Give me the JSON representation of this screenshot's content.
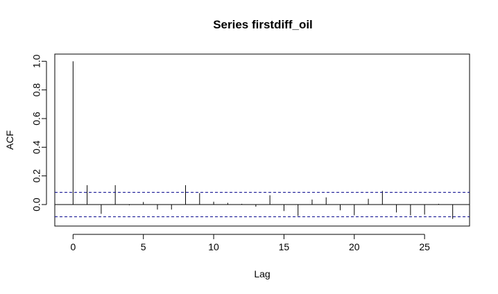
{
  "chart_data": {
    "type": "bar",
    "title": "Series  firstdiff_oil",
    "xlabel": "Lag",
    "ylabel": "ACF",
    "xlim": [
      -1.3,
      28.2
    ],
    "ylim": [
      -0.15,
      1.05
    ],
    "x_ticks": [
      0,
      5,
      10,
      15,
      20,
      25
    ],
    "y_ticks": [
      0.0,
      0.2,
      0.4,
      0.6,
      0.8,
      1.0
    ],
    "y_tick_labels": [
      "0.0",
      "0.2",
      "0.4",
      "0.6",
      "0.8",
      "1.0"
    ],
    "lags": [
      0,
      1,
      2,
      3,
      4,
      5,
      6,
      7,
      8,
      9,
      10,
      11,
      12,
      13,
      14,
      15,
      16,
      17,
      18,
      19,
      20,
      21,
      22,
      23,
      24,
      25,
      26,
      27
    ],
    "acf": [
      1.0,
      0.135,
      -0.065,
      0.135,
      -0.005,
      0.018,
      -0.035,
      -0.035,
      0.135,
      0.08,
      0.02,
      0.012,
      0.005,
      -0.015,
      0.065,
      -0.045,
      -0.08,
      0.035,
      0.05,
      -0.04,
      -0.075,
      0.04,
      0.095,
      -0.055,
      -0.075,
      -0.07,
      0.005,
      -0.1
    ],
    "confidence_band": 0.085,
    "colors": {
      "bars": "#000000",
      "band": "#00008B",
      "axis": "#000000"
    },
    "grid": false
  }
}
